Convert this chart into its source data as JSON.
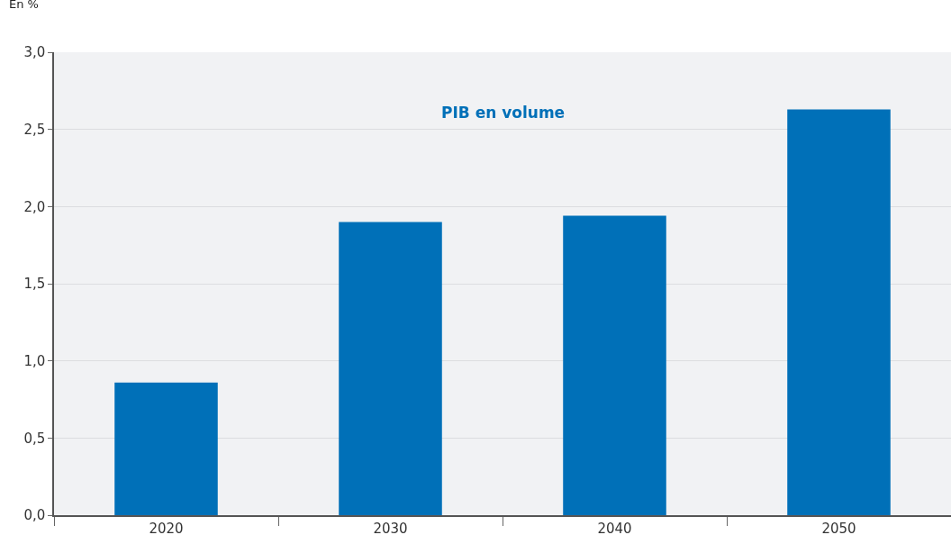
{
  "chart_data": {
    "type": "bar",
    "ylabel": "En %",
    "categories": [
      "2020",
      "2030",
      "2040",
      "2050"
    ],
    "series": [
      {
        "name": "PIB en volume",
        "color": "#0070b8",
        "values": [
          0.86,
          1.9,
          1.94,
          2.63
        ]
      }
    ],
    "ylim": [
      0,
      3
    ],
    "yticks": [
      {
        "value": 0,
        "label": "0,0"
      },
      {
        "value": 0.5,
        "label": "0,5"
      },
      {
        "value": 1,
        "label": "1,0"
      },
      {
        "value": 1.5,
        "label": "1,5"
      },
      {
        "value": 2,
        "label": "2,0"
      },
      {
        "value": 2.5,
        "label": "2,5"
      },
      {
        "value": 3,
        "label": "3,0"
      }
    ],
    "grid": "y"
  }
}
